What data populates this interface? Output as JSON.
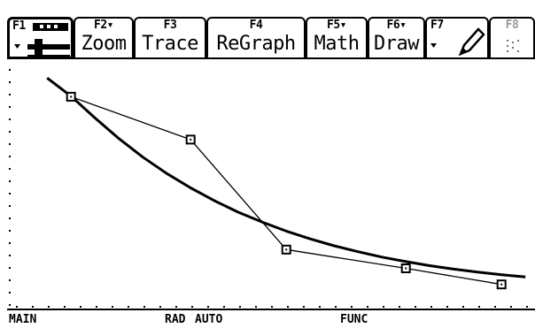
{
  "toolbar": {
    "tools_key": "F1",
    "zoom": {
      "key": "F2▾",
      "label": "Zoom"
    },
    "trace": {
      "key": "F3",
      "label": "Trace"
    },
    "regraph": {
      "key": "F4",
      "label": "ReGraph"
    },
    "math": {
      "key": "F5▾",
      "label": "Math"
    },
    "draw": {
      "key": "F6▾",
      "label": "Draw"
    },
    "pen_key": "F7",
    "last_key": "F8"
  },
  "status": {
    "folder": "MAIN",
    "angle_mode": "RAD",
    "exact_mode": "AUTO",
    "graph_mode": "FUNC"
  },
  "chart_data": {
    "type": "line",
    "title": "",
    "xlabel": "",
    "ylabel": "",
    "grid": false,
    "series": [
      {
        "style": "thick",
        "x": [
          0.0,
          0.5,
          1.0,
          1.5,
          2.0,
          2.5,
          3.0,
          3.5,
          4.0,
          4.5,
          5.0,
          5.5,
          6.0,
          6.5,
          7.0,
          7.5,
          8.0,
          8.5,
          9.0,
          9.5,
          10.0
        ],
        "y": [
          9.0,
          8.32,
          7.51,
          6.74,
          6.05,
          5.44,
          4.9,
          4.42,
          3.99,
          3.62,
          3.29,
          3.0,
          2.74,
          2.52,
          2.32,
          2.15,
          2.0,
          1.87,
          1.76,
          1.66,
          1.58
        ]
      },
      {
        "style": "thin-with-box-markers",
        "x": [
          0.5,
          3.0,
          5.0,
          7.5,
          9.5
        ],
        "y": [
          8.3,
          6.7,
          2.6,
          1.9,
          1.3
        ]
      }
    ],
    "xlim": [
      -0.8,
      10.2
    ],
    "ylim": [
      0.4,
      9.6
    ]
  }
}
